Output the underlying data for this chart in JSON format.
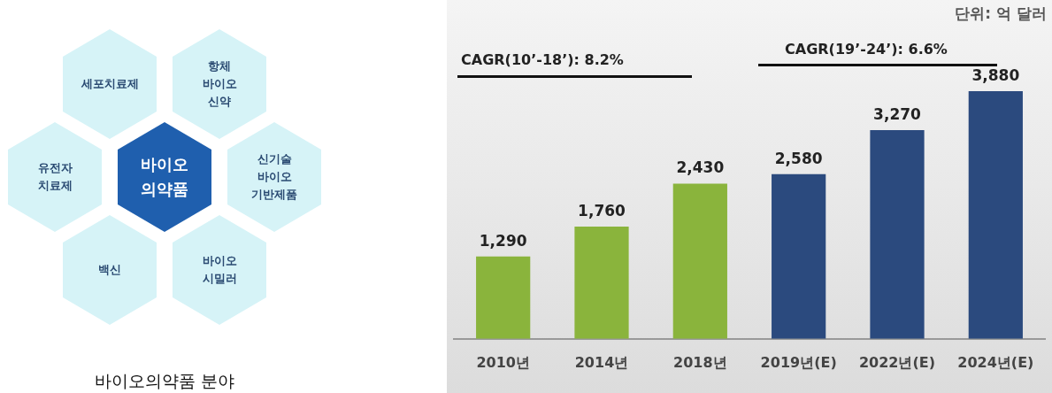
{
  "chart_data": [
    {
      "type": "other",
      "title": "바이오의약품 분야",
      "annotations": [
        "바이오\n의약품",
        "세포치료제",
        "항체\n바이오\n신약",
        "유전자\n치료제",
        "신기술\n바이오\n기반제품",
        "백신",
        "바이오\n시밀러"
      ]
    },
    {
      "type": "bar",
      "categories": [
        "2010년",
        "2014년",
        "2018년",
        "2019년(E)",
        "2022년(E)",
        "2024년(E)"
      ],
      "values": [
        1290,
        1760,
        2430,
        2580,
        3270,
        3880
      ],
      "colors": [
        "#8ab43c",
        "#8ab43c",
        "#8ab43c",
        "#2b4a7e",
        "#2b4a7e",
        "#2b4a7e"
      ],
      "value_labels": [
        "1,290",
        "1,760",
        "2,430",
        "2,580",
        "3,270",
        "3,880"
      ],
      "legend": false,
      "grid": false,
      "annotations": [
        "단위: 억 달러",
        "CAGR(10’-18’): 8.2%",
        "CAGR(19’-24’): 6.6%"
      ]
    }
  ]
}
